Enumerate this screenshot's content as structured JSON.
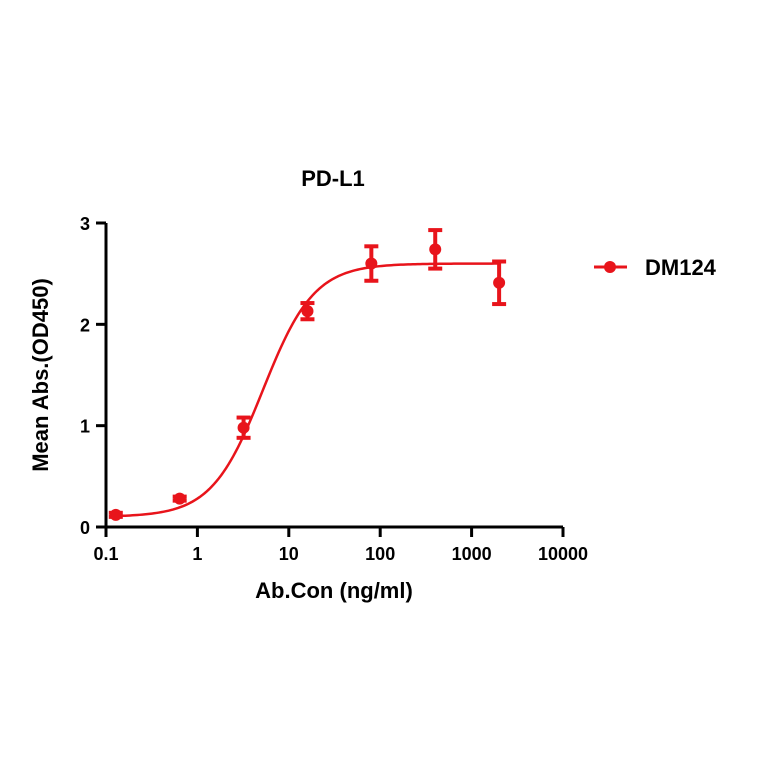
{
  "chart_data": {
    "type": "scatter",
    "title": "PD-L1",
    "xlabel": "Ab.Con (ng/ml)",
    "ylabel": "Mean Abs.(OD450)",
    "xscale": "log",
    "xlim": [
      0.1,
      10000
    ],
    "ylim": [
      0,
      3
    ],
    "x_ticks": [
      0.1,
      1,
      10,
      100,
      1000,
      10000
    ],
    "x_tick_labels": [
      "0.1",
      "1",
      "10",
      "100",
      "1000",
      "10000"
    ],
    "y_ticks": [
      0,
      1,
      2,
      3
    ],
    "y_tick_labels": [
      "0",
      "1",
      "2",
      "3"
    ],
    "grid": false,
    "legend_position": "right",
    "series": [
      {
        "name": "DM124",
        "color": "#e8141b",
        "marker": "circle",
        "x": [
          0.128,
          0.64,
          3.2,
          16,
          80,
          400,
          2000
        ],
        "y": [
          0.12,
          0.28,
          0.98,
          2.13,
          2.6,
          2.74,
          2.41
        ],
        "error": [
          0.02,
          0.02,
          0.1,
          0.08,
          0.17,
          0.19,
          0.21
        ],
        "fit": {
          "type": "4PL",
          "bottom": 0.1,
          "top": 2.6,
          "ec50": 5.2,
          "hill": 1.55
        }
      }
    ]
  }
}
